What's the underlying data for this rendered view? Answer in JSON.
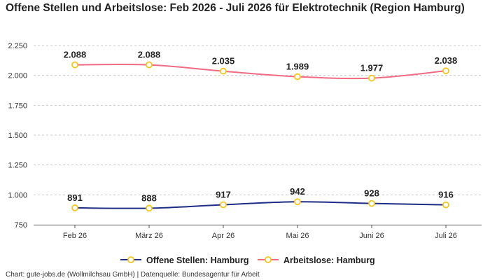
{
  "title": "Offene Stellen und Arbeitslose: Feb 2026 - Juli 2026 für Elektrotechnik (Region Hamburg)",
  "footer": "Chart: gute-jobs.de (Wollmilchsau GmbH) | Datenquelle: Bundesagentur für Arbeit",
  "chart_data": {
    "type": "line",
    "categories": [
      "Feb 26",
      "März 26",
      "Apr 26",
      "Mai 26",
      "Juni 26",
      "Juli 26"
    ],
    "ylim": [
      750,
      2250
    ],
    "y_ticks": [
      750,
      1000,
      1250,
      1500,
      1750,
      2000,
      2250
    ],
    "y_tick_labels": [
      "750",
      "1.000",
      "1.250",
      "1.500",
      "1.750",
      "2.000",
      "2.250"
    ],
    "grid": true,
    "legend_position": "bottom-center",
    "series": [
      {
        "name": "Offene Stellen: Hamburg",
        "values": [
          891,
          888,
          917,
          942,
          928,
          916
        ],
        "labels": [
          "891",
          "888",
          "917",
          "942",
          "928",
          "916"
        ],
        "color": "#1f2d86"
      },
      {
        "name": "Arbeitslose: Hamburg",
        "values": [
          2088,
          2088,
          2035,
          1989,
          1977,
          2038
        ],
        "labels": [
          "2.088",
          "2.088",
          "2.035",
          "1.989",
          "1.977",
          "2.038"
        ],
        "color": "#f06b84"
      }
    ],
    "marker_color": "#f5c518"
  }
}
